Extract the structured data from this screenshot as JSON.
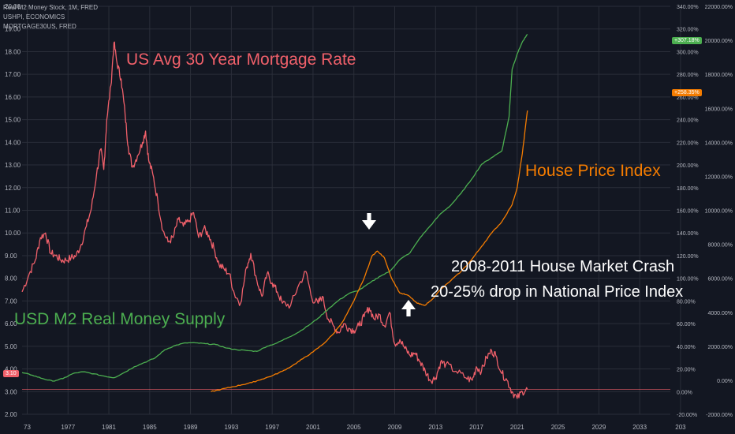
{
  "legend": [
    {
      "text": "Real M2 Money Stock, 1M, FRED"
    },
    {
      "text": "USHPI, ECONOMICS"
    },
    {
      "text": "MORTGAGE30US, FRED"
    }
  ],
  "annotations": {
    "mortgage": "US Avg 30 Year Mortgage Rate",
    "hpi": "House Price Index",
    "m2": "USD M2 Real Money Supply",
    "crash_line1": "2008-2011 House Market Crash",
    "crash_line2": "20-25% drop in National Price Index"
  },
  "badges": {
    "current_rate": "3.10",
    "m2_change": "+307.18%",
    "hpi_change": "+258.35%"
  },
  "colors": {
    "background": "#131722",
    "mortgage": "#f0606a",
    "hpi": "#f57c00",
    "m2": "#4caf50",
    "grid": "#2a2e39",
    "axis_text": "#b2b5be",
    "arrow": "#ffffff"
  },
  "icons": [
    "down-arrow-icon",
    "up-arrow-icon"
  ],
  "chart_data": {
    "type": "line",
    "x_ticks": [
      "73",
      "1977",
      "1981",
      "1985",
      "1989",
      "1993",
      "1997",
      "2001",
      "2005",
      "2009",
      "2013",
      "2017",
      "2021",
      "2025",
      "2029",
      "2033",
      "203"
    ],
    "x_range": [
      1972.5,
      2036
    ],
    "left_axis": {
      "ticks": [
        "2.00",
        "3.00",
        "4.00",
        "5.00",
        "6.00",
        "7.00",
        "8.00",
        "9.00",
        "10.00",
        "11.00",
        "12.00",
        "13.00",
        "14.00",
        "15.00",
        "16.00",
        "17.00",
        "18.00",
        "19.00",
        "20.00"
      ],
      "range": [
        2,
        20
      ]
    },
    "right_axis_1": {
      "ticks": [
        "-20.00%",
        "0.00%",
        "20.00%",
        "40.00%",
        "60.00%",
        "80.00%",
        "100.00%",
        "120.00%",
        "140.00%",
        "160.00%",
        "180.00%",
        "200.00%",
        "220.00%",
        "240.00%",
        "260.00%",
        "280.00%",
        "300.00%",
        "320.00%",
        "340.00%"
      ],
      "range": [
        -20,
        340
      ]
    },
    "right_axis_2": {
      "ticks": [
        "-2000.00%",
        "0.00%",
        "2000.00%",
        "4000.00%",
        "6000.00%",
        "8000.00%",
        "10000.00%",
        "12000.00%",
        "14000.00%",
        "16000.00%",
        "18000.00%",
        "20000.00%",
        "22000.00%"
      ],
      "range": [
        -2000,
        22000
      ]
    },
    "series": [
      {
        "name": "MORTGAGE30US, FRED",
        "axis": "left",
        "x": [
          1972.5,
          1973.2,
          1973.8,
          1974.3,
          1974.8,
          1975.3,
          1975.8,
          1976.3,
          1976.8,
          1977.3,
          1977.8,
          1978.3,
          1978.8,
          1979.3,
          1979.8,
          1980.2,
          1980.5,
          1980.8,
          1981.2,
          1981.5,
          1981.8,
          1982.2,
          1982.6,
          1982.9,
          1983.3,
          1983.8,
          1984.3,
          1984.6,
          1984.9,
          1985.3,
          1985.8,
          1986.3,
          1986.8,
          1987.3,
          1987.8,
          1988.3,
          1988.8,
          1989.3,
          1989.8,
          1990.3,
          1990.8,
          1991.3,
          1991.8,
          1992.3,
          1992.8,
          1993.3,
          1993.9,
          1994.5,
          1994.9,
          1995.5,
          1996.0,
          1996.5,
          1997.0,
          1997.5,
          1998.0,
          1998.8,
          1999.5,
          2000.3,
          2000.9,
          2001.5,
          2001.9,
          2002.5,
          2003.0,
          2003.5,
          2004.0,
          2004.5,
          2005.0,
          2005.5,
          2006.0,
          2006.5,
          2007.0,
          2007.5,
          2008.0,
          2008.5,
          2009.0,
          2009.5,
          2010.0,
          2010.5,
          2011.0,
          2011.5,
          2012.0,
          2012.5,
          2013.0,
          2013.5,
          2014.0,
          2015.0,
          2016.0,
          2016.6,
          2017.0,
          2017.5,
          2018.0,
          2018.5,
          2018.9,
          2019.5,
          2020.0,
          2020.5,
          2021.0,
          2021.5,
          2022.0
        ],
        "y": [
          7.4,
          8.2,
          8.8,
          9.8,
          10.0,
          9.1,
          9.0,
          8.8,
          8.8,
          8.9,
          9.0,
          9.5,
          10.3,
          11.1,
          12.6,
          13.7,
          12.8,
          15.0,
          16.5,
          18.4,
          17.5,
          16.8,
          15.2,
          13.8,
          12.9,
          13.4,
          14.0,
          14.5,
          13.2,
          12.6,
          11.4,
          10.1,
          9.6,
          9.8,
          10.6,
          10.3,
          10.5,
          10.9,
          9.8,
          10.2,
          9.9,
          9.3,
          8.6,
          8.4,
          8.2,
          7.3,
          6.9,
          8.5,
          9.1,
          7.9,
          7.2,
          8.2,
          7.8,
          7.4,
          6.9,
          6.8,
          7.6,
          8.3,
          7.1,
          6.9,
          7.2,
          6.2,
          5.9,
          5.6,
          6.0,
          5.8,
          5.7,
          5.9,
          6.3,
          6.7,
          6.2,
          6.4,
          5.9,
          6.5,
          5.1,
          5.3,
          4.9,
          4.6,
          4.7,
          4.3,
          3.9,
          3.5,
          3.6,
          4.3,
          4.2,
          3.9,
          3.6,
          3.5,
          4.1,
          3.9,
          4.5,
          4.8,
          4.6,
          3.8,
          3.5,
          3.0,
          2.7,
          3.0,
          3.1
        ]
      },
      {
        "name": "Real M2 Money Stock, 1M, FRED",
        "axis": "right_2",
        "x": [
          1972.5,
          1973.5,
          1974.5,
          1975.5,
          1976.5,
          1977.5,
          1978.5,
          1979.5,
          1980.5,
          1981.5,
          1982.5,
          1983.5,
          1984.5,
          1985.5,
          1986.5,
          1987.5,
          1988.5,
          1989.5,
          1990.5,
          1991.5,
          1992.5,
          1993.5,
          1994.5,
          1995.5,
          1996.5,
          1997.5,
          1998.5,
          1999.5,
          2000.5,
          2001.5,
          2002.5,
          2003.5,
          2004.5,
          2005.5,
          2006.5,
          2007.5,
          2008.5,
          2009.5,
          2010.5,
          2011.5,
          2012.5,
          2013.5,
          2014.5,
          2015.5,
          2016.5,
          2017.5,
          2018.5,
          2019.5,
          2020.2,
          2020.5,
          2021.0,
          2021.5,
          2022.0
        ],
        "y": [
          450,
          300,
          100,
          -50,
          100,
          400,
          500,
          380,
          250,
          150,
          450,
          800,
          1050,
          1300,
          1800,
          2050,
          2200,
          2200,
          2150,
          2100,
          1900,
          1800,
          1750,
          1700,
          2000,
          2200,
          2500,
          2800,
          3200,
          3650,
          4200,
          4700,
          5100,
          5300,
          5700,
          6100,
          6400,
          7100,
          7500,
          8400,
          9100,
          9800,
          10300,
          11000,
          11800,
          12700,
          13100,
          13500,
          15500,
          18300,
          19200,
          19900,
          20350
        ]
      },
      {
        "name": "USHPI, ECONOMICS",
        "axis": "right_1",
        "x": [
          1991.0,
          1992.0,
          1993.0,
          1994.0,
          1995.0,
          1996.0,
          1997.0,
          1998.0,
          1999.0,
          2000.0,
          2001.0,
          2002.0,
          2003.0,
          2004.0,
          2005.0,
          2006.0,
          2006.8,
          2007.3,
          2008.0,
          2008.7,
          2009.5,
          2010.3,
          2011.2,
          2011.9,
          2012.5,
          2013.5,
          2014.5,
          2015.5,
          2016.5,
          2017.5,
          2018.5,
          2019.5,
          2020.5,
          2021.0,
          2021.5,
          2022.0
        ],
        "y": [
          0,
          2,
          4,
          6,
          8,
          11,
          14,
          18,
          23,
          29,
          35,
          42,
          51,
          63,
          80,
          100,
          120,
          124,
          118,
          100,
          87,
          85,
          78,
          76,
          80,
          90,
          98,
          106,
          116,
          128,
          140,
          150,
          165,
          180,
          210,
          248
        ]
      }
    ]
  }
}
